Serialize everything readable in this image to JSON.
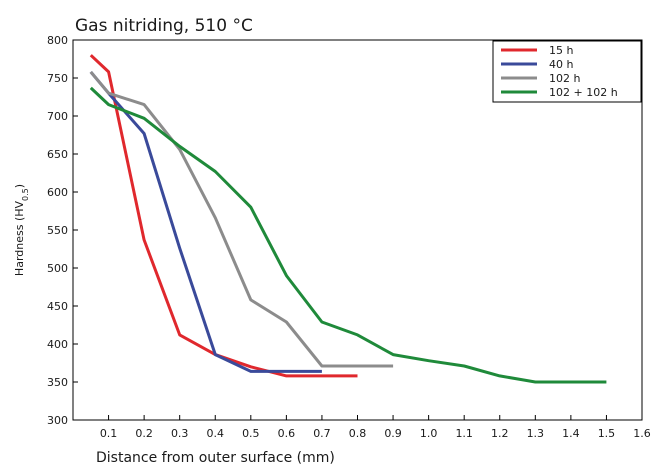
{
  "chart_data": {
    "type": "line",
    "title": "Gas nitriding, 510 °C",
    "xlabel": "Distance from outer surface (mm)",
    "ylabel_main": "Hardness (HV",
    "ylabel_sub": "0.5",
    "ylabel_close": ")",
    "xlim": [
      0,
      1.6
    ],
    "ylim": [
      300,
      800
    ],
    "xticks": [
      0.1,
      0.2,
      0.3,
      0.4,
      0.5,
      0.6,
      0.7,
      0.8,
      0.9,
      1.0,
      1.1,
      1.2,
      1.3,
      1.4,
      1.5,
      1.6
    ],
    "xtick_labels": [
      "0.1",
      "0.2",
      "0.3",
      "0.4",
      "0.5",
      "0.6",
      "0.7",
      "0.8",
      "0.9",
      "1.0",
      "1.1",
      "1.2",
      "1.3",
      "1.4",
      "1.5",
      "1.6"
    ],
    "yticks": [
      300,
      350,
      400,
      450,
      500,
      550,
      600,
      650,
      700,
      750,
      800
    ],
    "ytick_labels": [
      "300",
      "350",
      "400",
      "450",
      "500",
      "550",
      "600",
      "650",
      "700",
      "750",
      "800"
    ],
    "grid": false,
    "legend_position": "top-right",
    "series": [
      {
        "name": "15 h",
        "color": "#e0282d",
        "x": [
          0.05,
          0.1,
          0.2,
          0.3,
          0.4,
          0.5,
          0.6,
          0.7,
          0.8
        ],
        "y": [
          780,
          758,
          537,
          412,
          386,
          370,
          358,
          358,
          358
        ]
      },
      {
        "name": "40 h",
        "color": "#3a4a9a",
        "x": [
          0.05,
          0.1,
          0.2,
          0.3,
          0.4,
          0.5,
          0.6,
          0.7
        ],
        "y": [
          758,
          730,
          677,
          526,
          386,
          364,
          364,
          364
        ]
      },
      {
        "name": "102 h",
        "color": "#8c8c8c",
        "x": [
          0.05,
          0.1,
          0.2,
          0.3,
          0.4,
          0.5,
          0.6,
          0.7,
          0.8,
          0.9
        ],
        "y": [
          758,
          730,
          715,
          656,
          566,
          458,
          429,
          371,
          371,
          371
        ]
      },
      {
        "name": "102 + 102 h",
        "color": "#1f8a3a",
        "x": [
          0.05,
          0.1,
          0.2,
          0.3,
          0.4,
          0.5,
          0.6,
          0.7,
          0.8,
          0.9,
          1.0,
          1.1,
          1.2,
          1.3,
          1.4,
          1.5
        ],
        "y": [
          737,
          715,
          697,
          660,
          627,
          580,
          490,
          429,
          412,
          386,
          378,
          371,
          358,
          350,
          350,
          350
        ]
      }
    ]
  }
}
